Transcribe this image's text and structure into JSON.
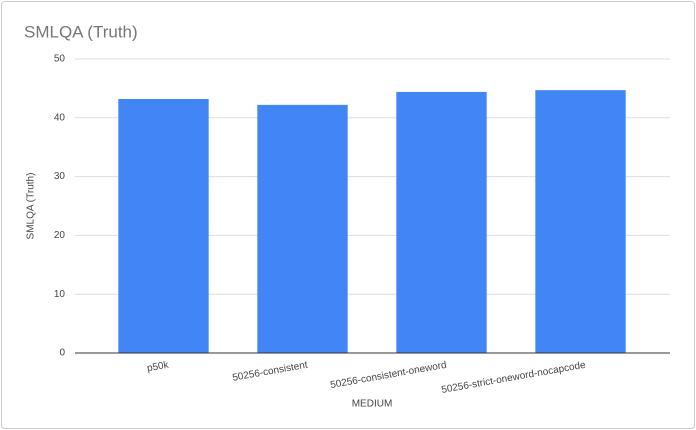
{
  "chart_data": {
    "type": "bar",
    "title": "SMLQA (Truth)",
    "y_label": "SMLQA (Truth)",
    "x_label": "MEDIUM",
    "categories": [
      "p50k",
      "50256-consistent",
      "50256-consistent-oneword",
      "50256-strict-oneword-nocapcode"
    ],
    "values": [
      43.2,
      42.2,
      44.4,
      44.7
    ],
    "color": "#4285f4",
    "ylim": [
      0,
      50
    ],
    "yticks": [
      0,
      10,
      20,
      30,
      40,
      50
    ],
    "grid": true
  }
}
